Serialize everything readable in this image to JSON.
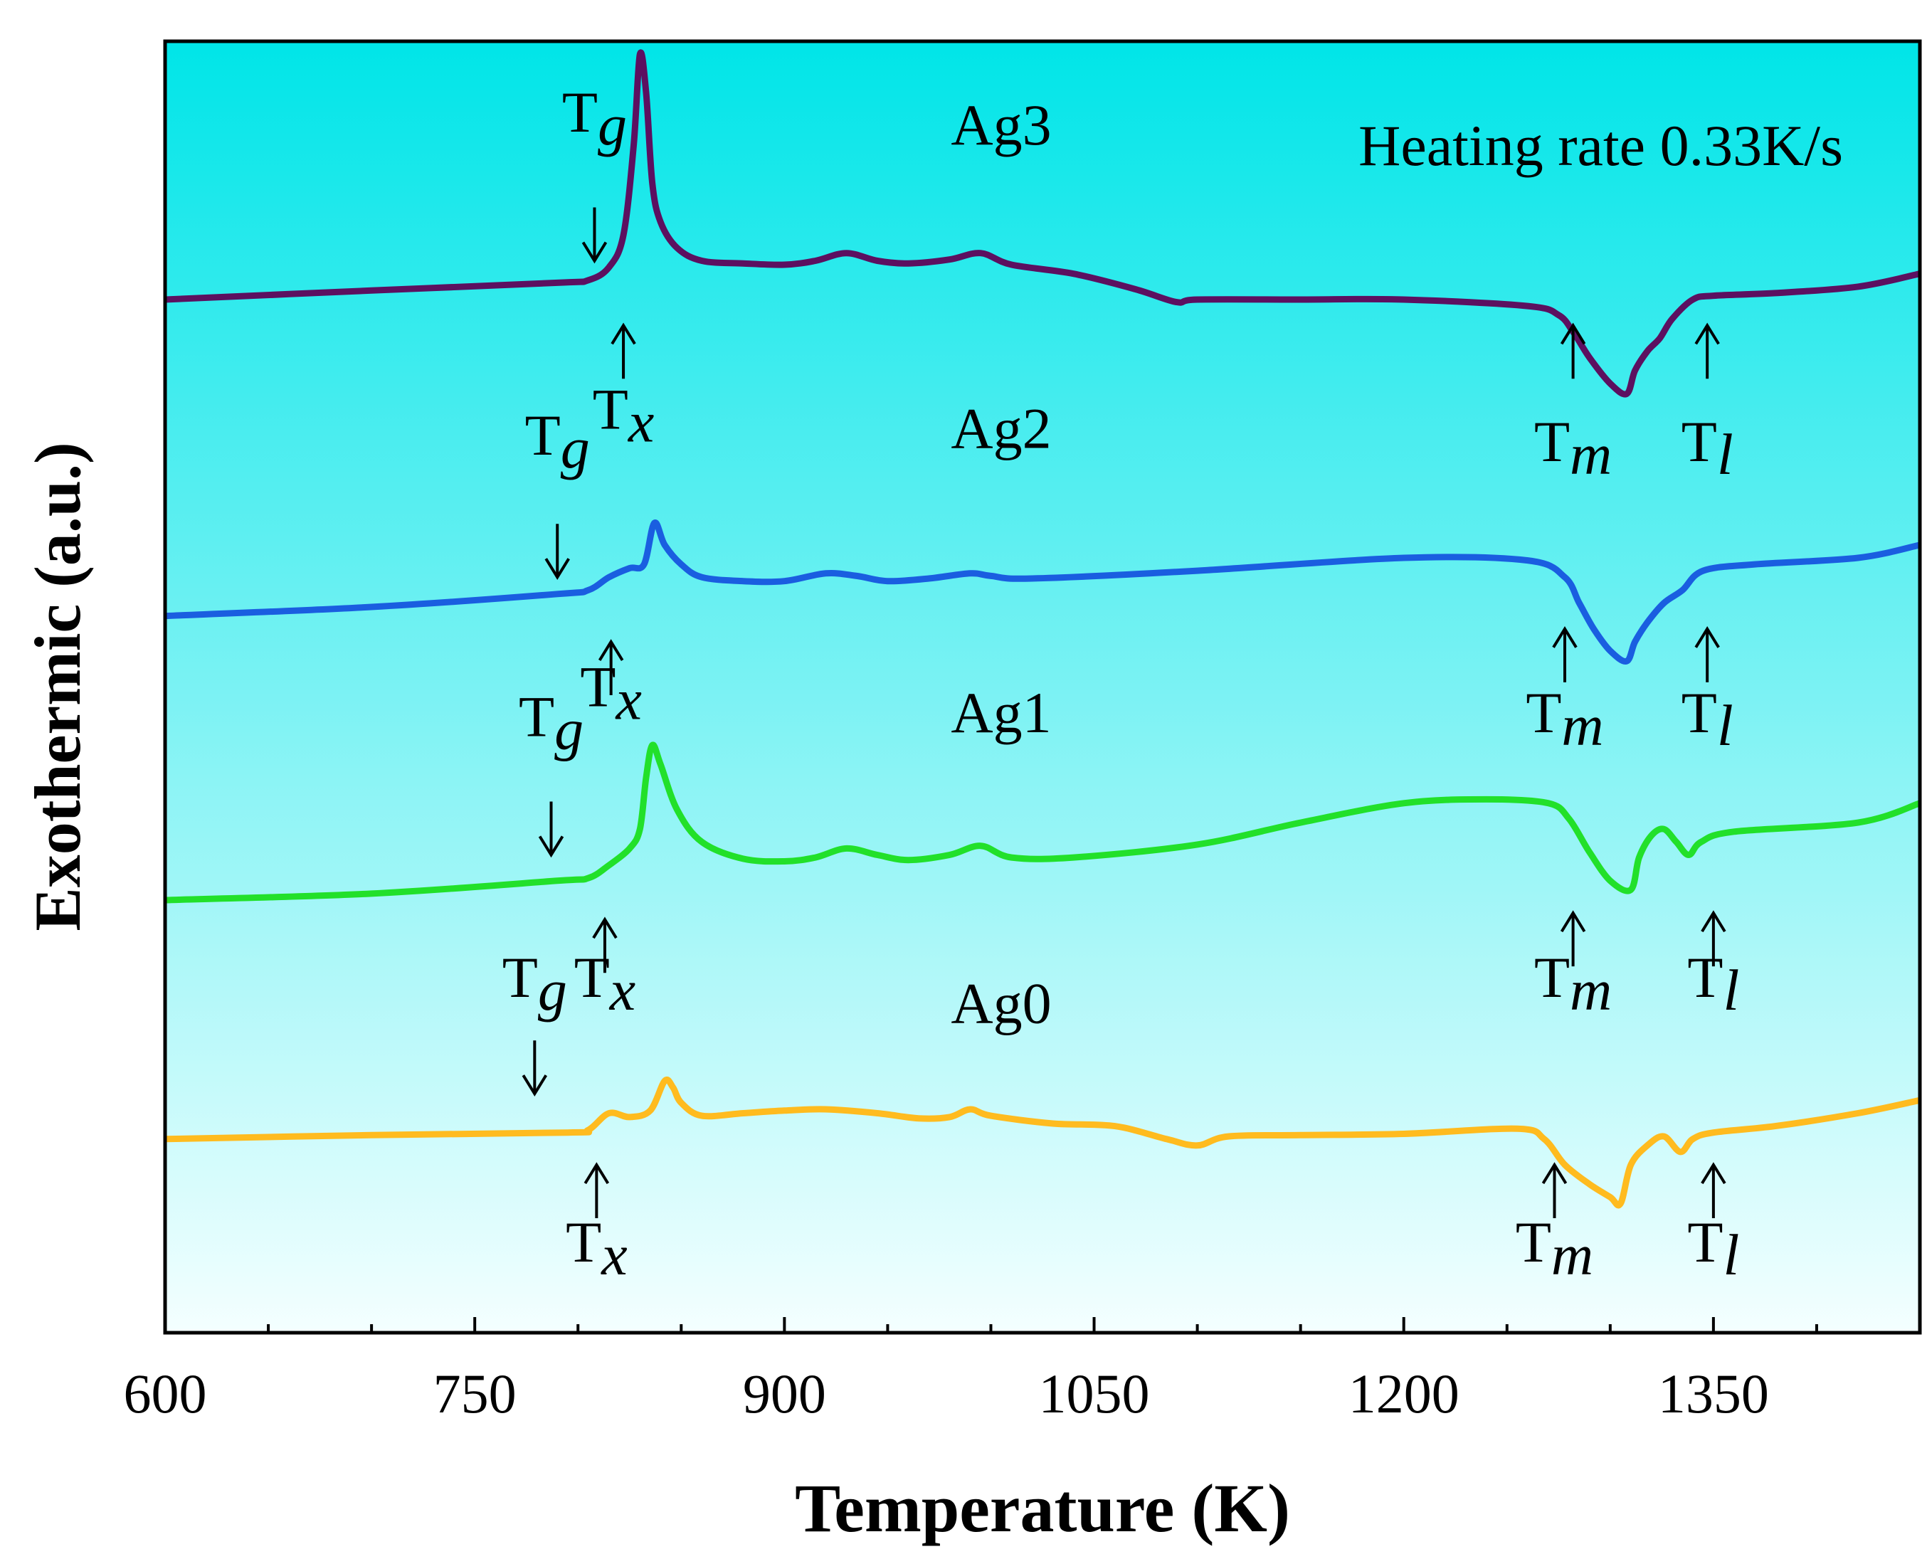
{
  "chart_data": {
    "type": "line",
    "title": "",
    "annotation": "Heating rate 0.33K/s",
    "xlabel": "Temperature (K)",
    "ylabel": "Exothermic (a.u.)",
    "xlim": [
      600,
      1450
    ],
    "ylim": [
      0,
      10
    ],
    "xticks": [
      600,
      750,
      900,
      1050,
      1200,
      1350
    ],
    "grid": false,
    "background": {
      "top": "#00e5e8",
      "bottom": "#f4ffff"
    },
    "series": [
      {
        "name": "Ag3",
        "color": "#5c1060",
        "x": [
          600,
          700,
          790,
          805,
          815,
          822,
          827,
          830,
          833,
          836,
          840,
          848,
          860,
          880,
          900,
          915,
          930,
          945,
          960,
          980,
          995,
          1010,
          1040,
          1070,
          1090,
          1100,
          1150,
          1200,
          1260,
          1275,
          1282,
          1290,
          1300,
          1308,
          1312,
          1318,
          1324,
          1330,
          1340,
          1350,
          1380,
          1420,
          1450
        ],
        "y": [
          8.0,
          8.07,
          8.13,
          8.15,
          8.25,
          8.5,
          9.2,
          9.9,
          9.6,
          8.9,
          8.6,
          8.4,
          8.3,
          8.28,
          8.27,
          8.3,
          8.36,
          8.3,
          8.28,
          8.31,
          8.36,
          8.27,
          8.2,
          8.08,
          7.98,
          8.0,
          8.0,
          8.0,
          7.95,
          7.88,
          7.75,
          7.55,
          7.35,
          7.27,
          7.45,
          7.6,
          7.7,
          7.85,
          8.0,
          8.03,
          8.05,
          8.1,
          8.2
        ]
      },
      {
        "name": "Ag2",
        "color": "#1a5ee0",
        "x": [
          600,
          700,
          790,
          805,
          815,
          825,
          832,
          837,
          842,
          850,
          860,
          880,
          900,
          920,
          935,
          950,
          970,
          990,
          1000,
          1020,
          1100,
          1200,
          1260,
          1278,
          1285,
          1292,
          1300,
          1308,
          1312,
          1318,
          1326,
          1335,
          1345,
          1370,
          1420,
          1450
        ],
        "y": [
          5.55,
          5.62,
          5.72,
          5.75,
          5.85,
          5.92,
          5.95,
          6.27,
          6.1,
          5.95,
          5.85,
          5.82,
          5.82,
          5.88,
          5.86,
          5.82,
          5.84,
          5.88,
          5.86,
          5.84,
          5.9,
          6.0,
          5.98,
          5.85,
          5.65,
          5.45,
          5.28,
          5.2,
          5.35,
          5.5,
          5.65,
          5.75,
          5.9,
          5.95,
          6.0,
          6.1
        ]
      },
      {
        "name": "Ag1",
        "color": "#22e02a",
        "x": [
          600,
          700,
          790,
          805,
          815,
          825,
          830,
          833,
          836,
          840,
          848,
          860,
          880,
          900,
          915,
          930,
          945,
          960,
          980,
          995,
          1010,
          1040,
          1100,
          1150,
          1200,
          1240,
          1270,
          1280,
          1290,
          1300,
          1310,
          1314,
          1320,
          1326,
          1332,
          1338,
          1344,
          1360,
          1420,
          1450
        ],
        "y": [
          3.35,
          3.4,
          3.5,
          3.52,
          3.62,
          3.75,
          3.9,
          4.3,
          4.55,
          4.4,
          4.05,
          3.8,
          3.67,
          3.65,
          3.68,
          3.75,
          3.7,
          3.66,
          3.7,
          3.77,
          3.68,
          3.68,
          3.78,
          3.95,
          4.1,
          4.13,
          4.1,
          3.98,
          3.72,
          3.5,
          3.43,
          3.68,
          3.85,
          3.9,
          3.8,
          3.7,
          3.8,
          3.88,
          3.95,
          4.1
        ]
      },
      {
        "name": "Ag0",
        "color": "#ffbb1f",
        "x": [
          600,
          700,
          795,
          805,
          815,
          825,
          835,
          842,
          846,
          850,
          860,
          880,
          900,
          920,
          945,
          965,
          980,
          990,
          1000,
          1030,
          1060,
          1085,
          1100,
          1115,
          1150,
          1200,
          1255,
          1268,
          1278,
          1290,
          1300,
          1305,
          1310,
          1318,
          1326,
          1334,
          1340,
          1350,
          1380,
          1420,
          1450
        ],
        "y": [
          1.5,
          1.53,
          1.55,
          1.57,
          1.7,
          1.67,
          1.72,
          1.95,
          1.9,
          1.78,
          1.68,
          1.7,
          1.72,
          1.73,
          1.7,
          1.66,
          1.67,
          1.73,
          1.68,
          1.62,
          1.6,
          1.5,
          1.45,
          1.52,
          1.53,
          1.54,
          1.58,
          1.5,
          1.3,
          1.15,
          1.05,
          1.0,
          1.3,
          1.45,
          1.52,
          1.4,
          1.5,
          1.55,
          1.6,
          1.7,
          1.8
        ]
      }
    ],
    "curve_labels": [
      {
        "text": "Ag3",
        "x": 1005,
        "y": 9.2
      },
      {
        "text": "Ag2",
        "x": 1005,
        "y": 6.85
      },
      {
        "text": "Ag1",
        "x": 1005,
        "y": 4.65
      },
      {
        "text": "Ag0",
        "x": 1005,
        "y": 2.4
      }
    ],
    "markers": [
      {
        "main": "T",
        "sub": "g",
        "dir": "down",
        "x": 808,
        "y_tip": 8.3,
        "y_text": 9.3
      },
      {
        "main": "T",
        "sub": "x",
        "dir": "up",
        "x": 822,
        "y_tip": 7.8,
        "y_text": 7.0
      },
      {
        "main": "T",
        "sub": "m",
        "dir": "up",
        "x": 1282,
        "y_tip": 7.8,
        "y_text": 6.75
      },
      {
        "main": "T",
        "sub": "l",
        "dir": "up",
        "x": 1347,
        "y_tip": 7.8,
        "y_text": 6.75
      },
      {
        "main": "T",
        "sub": "g",
        "dir": "down",
        "x": 790,
        "y_tip": 5.85,
        "y_text": 6.8
      },
      {
        "main": "T",
        "sub": "x",
        "dir": "up",
        "x": 816,
        "y_tip": 5.35,
        "y_text": 4.85
      },
      {
        "main": "T",
        "sub": "m",
        "dir": "up",
        "x": 1278,
        "y_tip": 5.45,
        "y_text": 4.65
      },
      {
        "main": "T",
        "sub": "l",
        "dir": "up",
        "x": 1347,
        "y_tip": 5.45,
        "y_text": 4.65
      },
      {
        "main": "T",
        "sub": "g",
        "dir": "down",
        "x": 787,
        "y_tip": 3.7,
        "y_text": 4.62
      },
      {
        "main": "T",
        "sub": "x",
        "dir": "up",
        "x": 813,
        "y_tip": 3.2,
        "y_text": 2.6
      },
      {
        "main": "T",
        "sub": "m",
        "dir": "up",
        "x": 1282,
        "y_tip": 3.25,
        "y_text": 2.6
      },
      {
        "main": "T",
        "sub": "l",
        "dir": "up",
        "x": 1350,
        "y_tip": 3.25,
        "y_text": 2.6
      },
      {
        "main": "T",
        "sub": "g",
        "dir": "down",
        "x": 779,
        "y_tip": 1.85,
        "y_text": 2.6
      },
      {
        "main": "T",
        "sub": "x",
        "dir": "up",
        "x": 809,
        "y_tip": 1.3,
        "y_text": 0.55
      },
      {
        "main": "T",
        "sub": "m",
        "dir": "up",
        "x": 1273,
        "y_tip": 1.3,
        "y_text": 0.55
      },
      {
        "main": "T",
        "sub": "l",
        "dir": "up",
        "x": 1350,
        "y_tip": 1.3,
        "y_text": 0.55
      }
    ]
  }
}
